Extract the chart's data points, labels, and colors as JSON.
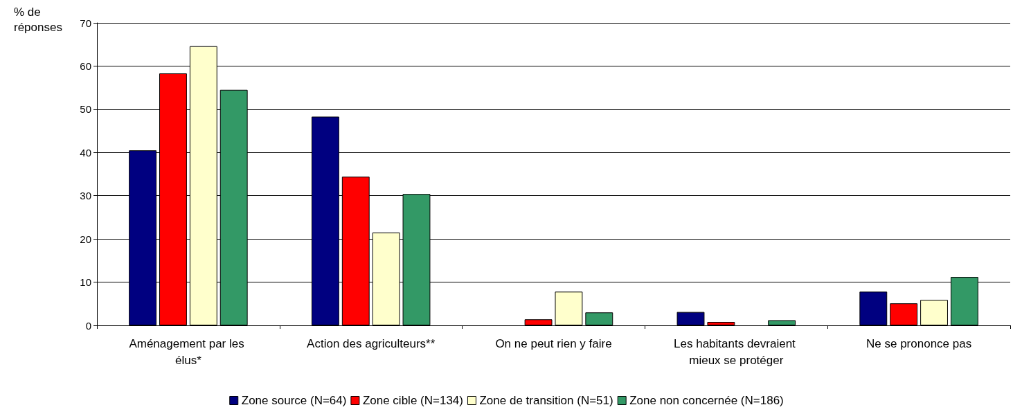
{
  "chart_data": {
    "type": "bar",
    "ylabel": "% de réponses",
    "categories": [
      "Aménagement par les élus*",
      "Action des agriculteurs**",
      "On ne peut rien y faire",
      "Les habitants devraient mieux se protéger",
      "Ne se prononce pas"
    ],
    "series": [
      {
        "name": "Zone source (N=64)",
        "color": "#000080",
        "values": [
          40.5,
          48.3,
          0,
          3.1,
          7.8
        ]
      },
      {
        "name": "Zone cible (N=134)",
        "color": "#ff0000",
        "values": [
          58.3,
          34.4,
          1.4,
          0.8,
          5.1
        ]
      },
      {
        "name": "Zone de transition (N=51)",
        "color": "#ffffcc",
        "values": [
          64.6,
          21.5,
          7.8,
          0,
          5.9
        ]
      },
      {
        "name": "Zone non concernée (N=186)",
        "color": "#339966",
        "values": [
          54.5,
          30.4,
          3.0,
          1.2,
          11.2
        ]
      }
    ],
    "ylim": [
      0,
      70
    ],
    "yticks": [
      0,
      10,
      20,
      30,
      40,
      50,
      60,
      70
    ],
    "grid": "y",
    "legend": "bottom"
  }
}
